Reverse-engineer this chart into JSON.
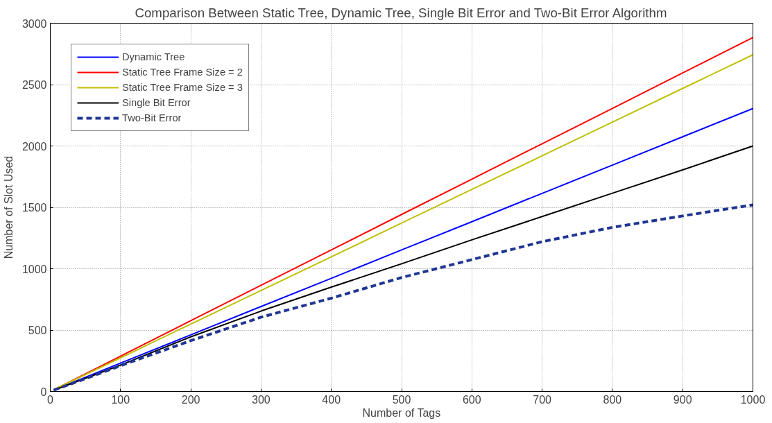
{
  "chart_data": {
    "type": "line",
    "title": "Comparison Between Static Tree, Dynamic Tree, Single Bit Error and Two-Bit Error Algorithm",
    "xlabel": "Number of Tags",
    "ylabel": "Number of Slot Used",
    "x": [
      5,
      100,
      200,
      300,
      400,
      500,
      600,
      700,
      800,
      900,
      1000
    ],
    "series": [
      {
        "name": "Dynamic Tree",
        "color": "#0000ff",
        "line_style": "solid",
        "values": [
          12,
          231,
          461,
          692,
          922,
          1153,
          1383,
          1614,
          1844,
          2075,
          2305
        ]
      },
      {
        "name": "Static Tree Frame Size = 2",
        "color": "#ff0000",
        "line_style": "solid",
        "values": [
          14,
          288,
          577,
          865,
          1153,
          1442,
          1730,
          2018,
          2306,
          2595,
          2883
        ]
      },
      {
        "name": "Static Tree Frame Size = 3",
        "color": "#bfbf00",
        "line_style": "solid",
        "values": [
          14,
          274,
          549,
          823,
          1097,
          1372,
          1646,
          1920,
          2194,
          2469,
          2743
        ]
      },
      {
        "name": "Single Bit Error",
        "color": "#000000",
        "line_style": "solid",
        "values": [
          10,
          215,
          445,
          655,
          850,
          1040,
          1235,
          1425,
          1615,
          1805,
          2000
        ]
      },
      {
        "name": "Two-Bit Error",
        "color": "#1f3594",
        "line_style": "dashed",
        "values": [
          10,
          210,
          414,
          605,
          760,
          928,
          1074,
          1220,
          1337,
          1430,
          1520
        ]
      }
    ],
    "xlim": [
      0,
      1000
    ],
    "ylim": [
      0,
      3000
    ],
    "xticks": [
      0,
      100,
      200,
      300,
      400,
      500,
      600,
      700,
      800,
      900,
      1000
    ],
    "yticks": [
      0,
      500,
      1000,
      1500,
      2000,
      2500,
      3000
    ],
    "grid": true,
    "legend": "top left"
  }
}
